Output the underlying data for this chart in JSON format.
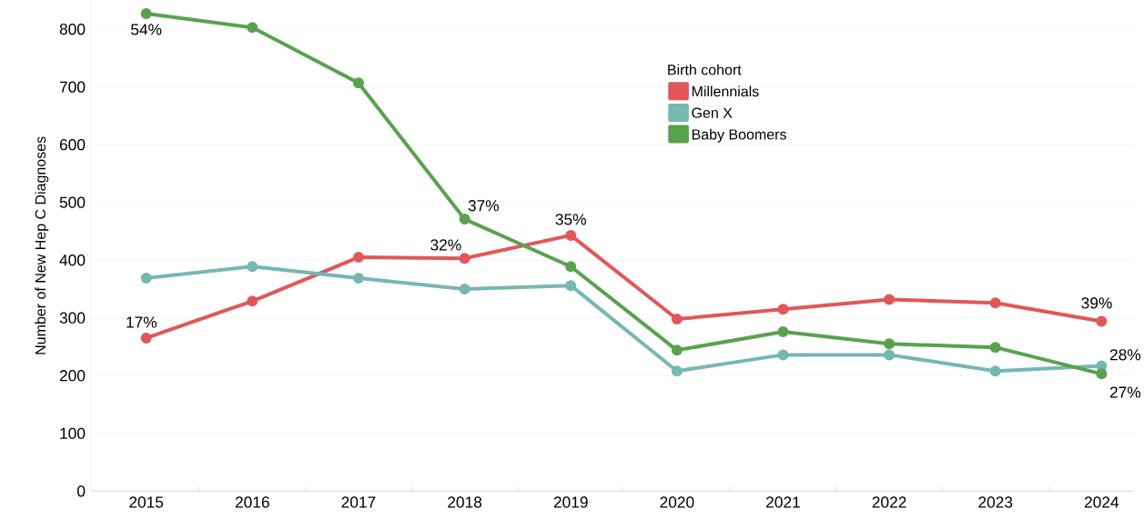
{
  "chart_data": {
    "type": "line",
    "ylabel": "Number of New Hep C Diagnoses",
    "legend_title": "Birth cohort",
    "categories": [
      "2015",
      "2016",
      "2017",
      "2018",
      "2019",
      "2020",
      "2021",
      "2022",
      "2023",
      "2024"
    ],
    "series": [
      {
        "name": "Millennials",
        "color": "#e15759",
        "values": [
          265,
          329,
          405,
          403,
          443,
          298,
          315,
          332,
          326,
          294
        ]
      },
      {
        "name": "Gen X",
        "color": "#76b7b2",
        "values": [
          369,
          389,
          369,
          350,
          356,
          208,
          236,
          236,
          208,
          217
        ]
      },
      {
        "name": "Baby Boomers",
        "color": "#59a14f",
        "values": [
          827,
          803,
          707,
          471,
          389,
          244,
          276,
          255,
          249,
          203
        ]
      }
    ],
    "ylim": [
      0,
      850
    ],
    "yticks": [
      0,
      100,
      200,
      300,
      400,
      500,
      600,
      700,
      800
    ],
    "grid": "y",
    "legend": "top",
    "marker": "circle",
    "line_style": "solid",
    "annotations": [
      {
        "text": "54%",
        "x": "2015",
        "y": 827
      },
      {
        "text": "17%",
        "x": "2015",
        "y": 265
      },
      {
        "text": "32%",
        "x": "2018",
        "y": 403
      },
      {
        "text": "37%",
        "x": "2018",
        "y": 471
      },
      {
        "text": "35%",
        "x": "2019",
        "y": 443
      },
      {
        "text": "39%",
        "x": "2024",
        "y": 294
      },
      {
        "text": "28%",
        "x": "2024",
        "y": 217
      },
      {
        "text": "27%",
        "x": "2024",
        "y": 203
      }
    ]
  }
}
